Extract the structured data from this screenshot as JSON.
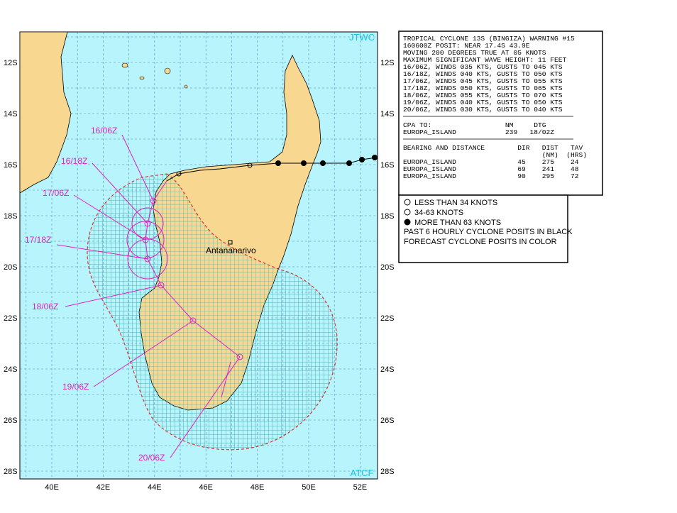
{
  "map": {
    "agency_top": "JTWC",
    "agency_bottom": "ATCF",
    "lat_labels": [
      "12S",
      "14S",
      "16S",
      "18S",
      "20S",
      "22S",
      "24S",
      "26S",
      "28S"
    ],
    "lon_labels": [
      "40E",
      "42E",
      "44E",
      "46E",
      "48E",
      "50E",
      "52E"
    ],
    "place": "Antananarivo",
    "forecast_labels": [
      "16/06Z",
      "16/18Z",
      "17/06Z",
      "17/18Z",
      "18/06Z",
      "19/06Z",
      "20/06Z"
    ]
  },
  "warning": {
    "sections": [
      [
        "TROPICAL CYCLONE 13S (BINGIZA) WARNING #15",
        "160600Z POSIT: NEAR 17.4S 43.9E",
        "MOVING 200 DEGREES TRUE AT 05 KNOTS",
        "MAXIMUM SIGNIFICANT WAVE HEIGHT: 11 FEET",
        "16/06Z, WINDS 035 KTS, GUSTS TO 045 KTS",
        "16/18Z, WINDS 040 KTS, GUSTS TO 050 KTS",
        "17/06Z, WINDS 045 KTS, GUSTS TO 055 KTS",
        "17/18Z, WINDS 050 KTS, GUSTS TO 065 KTS",
        "18/06Z, WINDS 055 KTS, GUSTS TO 070 KTS",
        "19/06Z, WINDS 040 KTS, GUSTS TO 050 KTS",
        "20/06Z, WINDS 030 KTS, GUSTS TO 040 KTS"
      ],
      [
        "CPA TO:                  NM     DTG",
        "EUROPA_ISLAND            239   18/02Z"
      ],
      [
        "BEARING AND DISTANCE        DIR   DIST   TAV",
        "                                  (NM)  (HRS)",
        "EUROPA_ISLAND               45    275    24",
        "EUROPA_ISLAND               69    241    48",
        "EUROPA_ISLAND               90    295    72"
      ]
    ]
  },
  "legend": {
    "items": [
      "LESS THAN 34 KNOTS",
      "34-63 KNOTS",
      "MORE THAN 63 KNOTS"
    ],
    "notes": [
      "PAST 6 HOURLY CYCLONE POSITS IN BLACK",
      "FORECAST CYCLONE POSITS IN COLOR"
    ]
  }
}
